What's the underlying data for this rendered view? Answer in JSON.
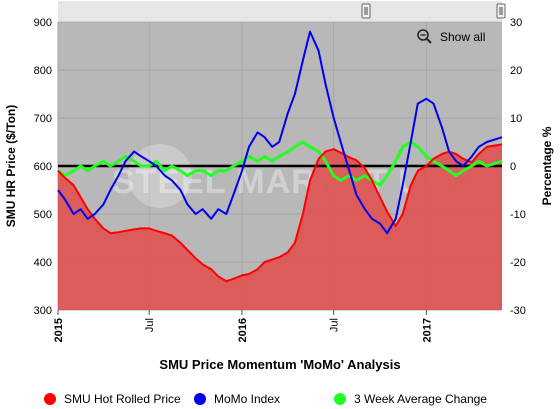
{
  "chart_data": {
    "type": "line",
    "title": "SMU Price Momentum 'MoMo' Analysis",
    "watermark": "STEEL MARKET UPDATE",
    "show_all_label": "Show all",
    "left_axis": {
      "label": "SMU HR Price ($/Ton)",
      "ticks": [
        "300",
        "400",
        "500",
        "600",
        "700",
        "800",
        "900"
      ],
      "range": [
        300,
        900
      ]
    },
    "right_axis": {
      "label": "Percentage %",
      "ticks": [
        "-30",
        "-20",
        "-10",
        "0",
        "10",
        "20",
        "30"
      ],
      "range": [
        -30,
        30
      ]
    },
    "x_axis": {
      "range": [
        "2015-01-01",
        "2017-05-31"
      ],
      "ticks": [
        {
          "date": "2015-01-01",
          "label": "2015",
          "bold": true
        },
        {
          "date": "2015-07-01",
          "label": "Jul",
          "bold": false
        },
        {
          "date": "2016-01-01",
          "label": "2016",
          "bold": true
        },
        {
          "date": "2016-07-01",
          "label": "Jul",
          "bold": false
        },
        {
          "date": "2017-01-01",
          "label": "2017",
          "bold": true
        }
      ]
    },
    "legend": [
      {
        "name": "SMU Hot Rolled Price",
        "color": "#ff0000"
      },
      {
        "name": "MoMo Index",
        "color": "#0000ee"
      },
      {
        "name": "3 Week Average Change",
        "color": "#22ff22"
      }
    ],
    "series": [
      {
        "name": "SMU Hot Rolled Price",
        "axis": "left",
        "color": "#ff0000",
        "fill": "#dd5555",
        "points": [
          [
            "2015-01-01",
            590
          ],
          [
            "2015-01-15",
            575
          ],
          [
            "2015-02-01",
            560
          ],
          [
            "2015-02-15",
            535
          ],
          [
            "2015-03-01",
            510
          ],
          [
            "2015-03-15",
            490
          ],
          [
            "2015-04-01",
            470
          ],
          [
            "2015-04-15",
            460
          ],
          [
            "2015-05-01",
            462
          ],
          [
            "2015-05-15",
            465
          ],
          [
            "2015-06-01",
            468
          ],
          [
            "2015-06-15",
            470
          ],
          [
            "2015-07-01",
            470
          ],
          [
            "2015-07-15",
            465
          ],
          [
            "2015-08-01",
            460
          ],
          [
            "2015-08-15",
            455
          ],
          [
            "2015-09-01",
            440
          ],
          [
            "2015-09-15",
            425
          ],
          [
            "2015-10-01",
            408
          ],
          [
            "2015-10-15",
            395
          ],
          [
            "2015-11-01",
            385
          ],
          [
            "2015-11-15",
            370
          ],
          [
            "2015-12-01",
            360
          ],
          [
            "2015-12-15",
            365
          ],
          [
            "2016-01-01",
            372
          ],
          [
            "2016-01-15",
            375
          ],
          [
            "2016-02-01",
            385
          ],
          [
            "2016-02-15",
            400
          ],
          [
            "2016-03-01",
            405
          ],
          [
            "2016-03-15",
            410
          ],
          [
            "2016-04-01",
            420
          ],
          [
            "2016-04-15",
            440
          ],
          [
            "2016-05-01",
            500
          ],
          [
            "2016-05-15",
            570
          ],
          [
            "2016-06-01",
            615
          ],
          [
            "2016-06-15",
            630
          ],
          [
            "2016-07-01",
            635
          ],
          [
            "2016-07-15",
            628
          ],
          [
            "2016-08-01",
            618
          ],
          [
            "2016-08-15",
            612
          ],
          [
            "2016-09-01",
            595
          ],
          [
            "2016-09-15",
            570
          ],
          [
            "2016-10-01",
            535
          ],
          [
            "2016-10-15",
            505
          ],
          [
            "2016-11-01",
            475
          ],
          [
            "2016-11-15",
            500
          ],
          [
            "2016-12-01",
            560
          ],
          [
            "2016-12-15",
            590
          ],
          [
            "2017-01-01",
            600
          ],
          [
            "2017-01-15",
            615
          ],
          [
            "2017-02-01",
            625
          ],
          [
            "2017-02-15",
            630
          ],
          [
            "2017-03-01",
            625
          ],
          [
            "2017-03-15",
            615
          ],
          [
            "2017-04-01",
            608
          ],
          [
            "2017-04-15",
            625
          ],
          [
            "2017-05-01",
            640
          ],
          [
            "2017-05-31",
            645
          ]
        ]
      },
      {
        "name": "MoMo Index",
        "axis": "right",
        "color": "#0000ee",
        "points": [
          [
            "2015-01-01",
            -5
          ],
          [
            "2015-01-15",
            -7
          ],
          [
            "2015-02-01",
            -10
          ],
          [
            "2015-02-15",
            -9
          ],
          [
            "2015-03-01",
            -11
          ],
          [
            "2015-03-15",
            -10
          ],
          [
            "2015-04-01",
            -8
          ],
          [
            "2015-04-15",
            -5
          ],
          [
            "2015-05-01",
            -2
          ],
          [
            "2015-05-15",
            1
          ],
          [
            "2015-06-01",
            3
          ],
          [
            "2015-06-15",
            2
          ],
          [
            "2015-07-01",
            1
          ],
          [
            "2015-07-15",
            0
          ],
          [
            "2015-08-01",
            -2
          ],
          [
            "2015-08-15",
            -3
          ],
          [
            "2015-09-01",
            -5
          ],
          [
            "2015-09-15",
            -8
          ],
          [
            "2015-10-01",
            -10
          ],
          [
            "2015-10-15",
            -9
          ],
          [
            "2015-11-01",
            -11
          ],
          [
            "2015-11-15",
            -9
          ],
          [
            "2015-12-01",
            -10
          ],
          [
            "2015-12-15",
            -6
          ],
          [
            "2016-01-01",
            -1
          ],
          [
            "2016-01-15",
            4
          ],
          [
            "2016-02-01",
            7
          ],
          [
            "2016-02-15",
            6
          ],
          [
            "2016-03-01",
            4
          ],
          [
            "2016-03-15",
            5
          ],
          [
            "2016-04-01",
            11
          ],
          [
            "2016-04-15",
            15
          ],
          [
            "2016-05-01",
            22
          ],
          [
            "2016-05-15",
            28
          ],
          [
            "2016-06-01",
            24
          ],
          [
            "2016-06-15",
            17
          ],
          [
            "2016-07-01",
            10
          ],
          [
            "2016-07-15",
            5
          ],
          [
            "2016-08-01",
            -1
          ],
          [
            "2016-08-15",
            -6
          ],
          [
            "2016-09-01",
            -9
          ],
          [
            "2016-09-15",
            -11
          ],
          [
            "2016-10-01",
            -12
          ],
          [
            "2016-10-15",
            -14
          ],
          [
            "2016-11-01",
            -11
          ],
          [
            "2016-11-15",
            -4
          ],
          [
            "2016-12-01",
            5
          ],
          [
            "2016-12-15",
            13
          ],
          [
            "2017-01-01",
            14
          ],
          [
            "2017-01-15",
            13
          ],
          [
            "2017-02-01",
            8
          ],
          [
            "2017-02-15",
            3
          ],
          [
            "2017-03-01",
            1
          ],
          [
            "2017-03-15",
            0
          ],
          [
            "2017-04-01",
            2
          ],
          [
            "2017-04-15",
            4
          ],
          [
            "2017-05-01",
            5
          ],
          [
            "2017-05-31",
            6
          ]
        ]
      },
      {
        "name": "3 Week Average Change",
        "axis": "right",
        "color": "#22ff22",
        "points": [
          [
            "2015-01-01",
            -1
          ],
          [
            "2015-01-15",
            -2
          ],
          [
            "2015-02-01",
            -1
          ],
          [
            "2015-02-15",
            0
          ],
          [
            "2015-03-01",
            -1
          ],
          [
            "2015-03-15",
            0
          ],
          [
            "2015-04-01",
            1
          ],
          [
            "2015-04-15",
            0
          ],
          [
            "2015-05-01",
            1
          ],
          [
            "2015-05-15",
            2
          ],
          [
            "2015-06-01",
            1
          ],
          [
            "2015-06-15",
            0
          ],
          [
            "2015-07-01",
            0
          ],
          [
            "2015-07-15",
            1
          ],
          [
            "2015-08-01",
            -1
          ],
          [
            "2015-08-15",
            0
          ],
          [
            "2015-09-01",
            -1
          ],
          [
            "2015-09-15",
            -2
          ],
          [
            "2015-10-01",
            -1
          ],
          [
            "2015-10-15",
            -1
          ],
          [
            "2015-11-01",
            -2
          ],
          [
            "2015-11-15",
            -1
          ],
          [
            "2015-12-01",
            -1
          ],
          [
            "2015-12-15",
            0
          ],
          [
            "2016-01-01",
            1
          ],
          [
            "2016-01-15",
            2
          ],
          [
            "2016-02-01",
            1
          ],
          [
            "2016-02-15",
            2
          ],
          [
            "2016-03-01",
            1
          ],
          [
            "2016-03-15",
            2
          ],
          [
            "2016-04-01",
            3
          ],
          [
            "2016-04-15",
            4
          ],
          [
            "2016-05-01",
            5
          ],
          [
            "2016-05-15",
            4
          ],
          [
            "2016-06-01",
            3
          ],
          [
            "2016-06-15",
            1
          ],
          [
            "2016-07-01",
            -2
          ],
          [
            "2016-07-15",
            -3
          ],
          [
            "2016-08-01",
            -2
          ],
          [
            "2016-08-15",
            -3
          ],
          [
            "2016-09-01",
            -2
          ],
          [
            "2016-09-15",
            -3
          ],
          [
            "2016-10-01",
            -4
          ],
          [
            "2016-10-15",
            -2
          ],
          [
            "2016-11-01",
            1
          ],
          [
            "2016-11-15",
            4
          ],
          [
            "2016-12-01",
            5
          ],
          [
            "2016-12-15",
            4
          ],
          [
            "2017-01-01",
            2
          ],
          [
            "2017-01-15",
            1
          ],
          [
            "2017-02-01",
            0
          ],
          [
            "2017-02-15",
            -1
          ],
          [
            "2017-03-01",
            -2
          ],
          [
            "2017-03-15",
            -1
          ],
          [
            "2017-04-01",
            0
          ],
          [
            "2017-04-15",
            1
          ],
          [
            "2017-05-01",
            0
          ],
          [
            "2017-05-31",
            1
          ]
        ]
      }
    ]
  }
}
